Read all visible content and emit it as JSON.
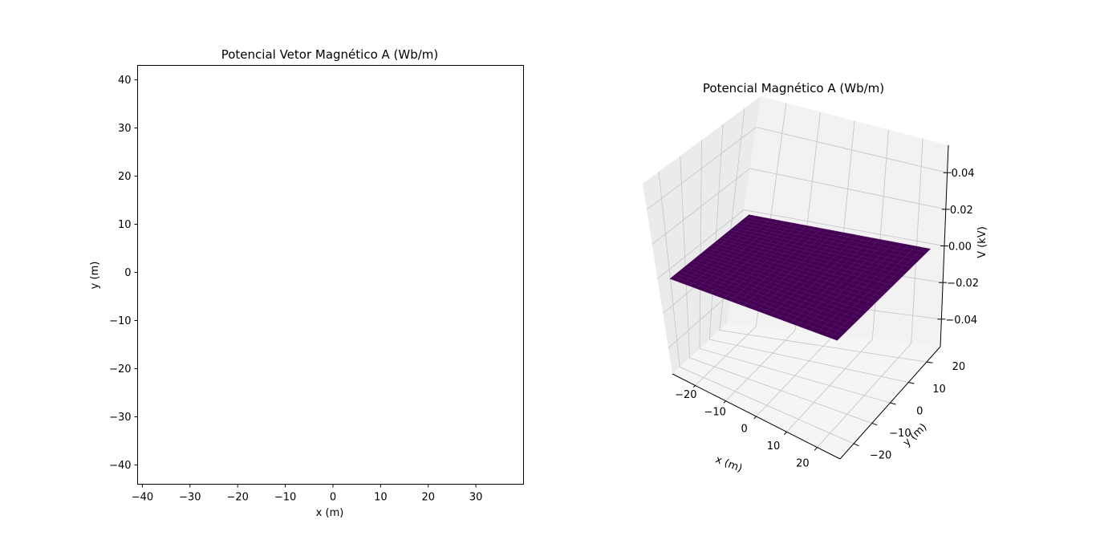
{
  "chart_data": [
    {
      "type": "heatmap",
      "title": "Potencial Vetor Magnético A (Wb/m)",
      "xlabel": "x (m)",
      "ylabel": "y (m)",
      "xlim": [
        -41,
        40
      ],
      "ylim": [
        -44,
        43
      ],
      "x_ticks": [
        -40,
        -30,
        -20,
        -10,
        0,
        10,
        20,
        30
      ],
      "x_tick_labels": [
        "−40",
        "−30",
        "−20",
        "−10",
        "0",
        "10",
        "20",
        "30"
      ],
      "y_ticks": [
        -40,
        -30,
        -20,
        -10,
        0,
        10,
        20,
        30,
        40
      ],
      "y_tick_labels": [
        "−40",
        "−30",
        "−20",
        "−10",
        "0",
        "10",
        "20",
        "30",
        "40"
      ],
      "grid": false,
      "values": []
    },
    {
      "type": "surface",
      "title": "Potencial Magnético A (Wb/m)",
      "xlabel": "x (m)",
      "ylabel": "y (m)",
      "zlabel": "V (kV)",
      "xlim": [
        -27.5,
        27.5
      ],
      "ylim": [
        -27.5,
        27.5
      ],
      "zlim": [
        -0.055,
        0.055
      ],
      "x_ticks": [
        -20,
        -10,
        0,
        10,
        20
      ],
      "x_tick_labels": [
        "−20",
        "−10",
        "0",
        "10",
        "20"
      ],
      "y_ticks": [
        -20,
        -10,
        0,
        10,
        20
      ],
      "y_tick_labels": [
        "−20",
        "−10",
        "0",
        "10",
        "20"
      ],
      "z_ticks": [
        -0.04,
        -0.02,
        0.0,
        0.02,
        0.04
      ],
      "z_tick_labels": [
        "−0.04",
        "−0.02",
        "0.00",
        "0.02",
        "0.04"
      ],
      "surface": {
        "x_range": [
          -25,
          25
        ],
        "y_range": [
          -25,
          25
        ],
        "z_value": 0.0
      },
      "surface_color": "#440154",
      "grid": true
    }
  ]
}
